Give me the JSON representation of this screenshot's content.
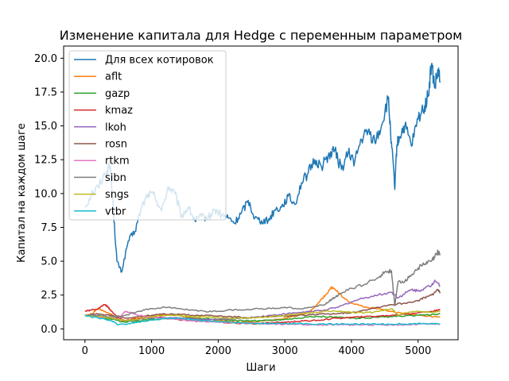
{
  "chart_data": {
    "type": "line",
    "title": "Изменение капитала для Hedge с переменным параметром",
    "xlabel": "Шаги",
    "ylabel": "Капитал на каждом шаге",
    "xlim": [
      -320,
      5600
    ],
    "ylim": [
      -0.8,
      20.9
    ],
    "xticks": [
      0,
      1000,
      2000,
      3000,
      4000,
      5000
    ],
    "xtick_labels": [
      "0",
      "1000",
      "2000",
      "3000",
      "4000",
      "5000"
    ],
    "yticks": [
      0.0,
      2.5,
      5.0,
      7.5,
      10.0,
      12.5,
      15.0,
      17.5,
      20.0
    ],
    "ytick_labels": [
      "0.0",
      "2.5",
      "5.0",
      "7.5",
      "10.0",
      "12.5",
      "15.0",
      "17.5",
      "20.0"
    ],
    "grid": false,
    "legend_position": "upper-left",
    "series": [
      {
        "name": "Для всех котировок",
        "color": "#1f77b4",
        "x": [
          0,
          100,
          200,
          300,
          380,
          430,
          480,
          550,
          650,
          750,
          850,
          950,
          1050,
          1150,
          1250,
          1350,
          1450,
          1550,
          1650,
          1750,
          1850,
          1950,
          2050,
          2150,
          2250,
          2350,
          2450,
          2550,
          2650,
          2750,
          2850,
          2950,
          3050,
          3150,
          3250,
          3350,
          3450,
          3550,
          3650,
          3750,
          3850,
          3950,
          4050,
          4150,
          4250,
          4350,
          4450,
          4550,
          4600,
          4650,
          4680,
          4720,
          4800,
          4900,
          5000,
          5100,
          5150,
          5200,
          5250,
          5300,
          5330
        ],
        "y": [
          9.0,
          10.0,
          10.5,
          11.5,
          12.0,
          8.5,
          5.0,
          4.2,
          6.5,
          7.2,
          9.0,
          10.0,
          9.8,
          8.7,
          10.5,
          10.0,
          8.3,
          9.0,
          8.0,
          8.3,
          8.2,
          8.8,
          8.4,
          8.2,
          7.8,
          8.6,
          9.5,
          8.2,
          8.0,
          8.0,
          8.8,
          9.0,
          9.8,
          9.2,
          10.8,
          11.5,
          12.5,
          12.0,
          12.8,
          13.2,
          11.8,
          13.0,
          12.4,
          14.0,
          14.6,
          13.8,
          15.0,
          17.0,
          13.8,
          10.3,
          13.5,
          14.2,
          15.0,
          13.5,
          15.5,
          16.5,
          17.2,
          19.5,
          17.8,
          19.0,
          18.2
        ]
      },
      {
        "name": "aflt",
        "color": "#ff7f0e",
        "x": [
          0,
          100,
          200,
          300,
          450,
          550,
          700,
          900,
          1100,
          1300,
          1500,
          1700,
          1900,
          2100,
          2300,
          2500,
          2700,
          2900,
          3100,
          3300,
          3450,
          3550,
          3650,
          3700,
          3800,
          3900,
          4000,
          4200,
          4400,
          4600,
          4800,
          5000,
          5200,
          5330
        ],
        "y": [
          1.0,
          1.1,
          1.5,
          1.3,
          0.9,
          0.6,
          0.7,
          0.9,
          1.0,
          1.1,
          0.9,
          0.8,
          0.7,
          0.6,
          0.5,
          0.5,
          0.6,
          0.7,
          0.9,
          1.1,
          1.6,
          2.2,
          2.7,
          3.1,
          2.7,
          2.2,
          1.9,
          1.6,
          1.5,
          1.3,
          1.1,
          1.0,
          0.9,
          0.85
        ]
      },
      {
        "name": "gazp",
        "color": "#2ca02c",
        "x": [
          0,
          200,
          400,
          600,
          800,
          1000,
          1200,
          1400,
          1600,
          1800,
          2000,
          2200,
          2400,
          2600,
          2800,
          3000,
          3200,
          3400,
          3600,
          3800,
          4000,
          4200,
          4400,
          4600,
          4800,
          5000,
          5200,
          5330
        ],
        "y": [
          1.0,
          0.9,
          0.7,
          0.5,
          0.6,
          0.7,
          0.75,
          0.8,
          0.8,
          0.75,
          0.7,
          0.65,
          0.6,
          0.6,
          0.65,
          0.7,
          0.8,
          0.9,
          0.9,
          0.85,
          0.8,
          0.8,
          0.85,
          0.9,
          0.95,
          1.0,
          1.05,
          1.1
        ]
      },
      {
        "name": "kmaz",
        "color": "#d62728",
        "x": [
          0,
          100,
          200,
          300,
          350,
          400,
          500,
          600,
          800,
          1000,
          1200,
          1400,
          1600,
          1800,
          2000,
          2200,
          2400,
          2600,
          2800,
          3000,
          3200,
          3400,
          3600,
          3800,
          4000,
          4200,
          4400,
          4600,
          4800,
          5000,
          5200,
          5330
        ],
        "y": [
          1.3,
          1.4,
          1.5,
          1.8,
          1.6,
          1.3,
          0.8,
          0.6,
          0.75,
          0.9,
          0.8,
          0.7,
          0.6,
          0.55,
          0.5,
          0.45,
          0.4,
          0.4,
          0.45,
          0.5,
          0.55,
          0.6,
          0.7,
          0.8,
          0.85,
          0.9,
          0.95,
          1.0,
          1.1,
          1.2,
          1.3,
          1.4
        ]
      },
      {
        "name": "lkoh",
        "color": "#9467bd",
        "x": [
          0,
          200,
          400,
          600,
          800,
          1000,
          1200,
          1400,
          1600,
          1800,
          2000,
          2200,
          2400,
          2600,
          2800,
          3000,
          3200,
          3400,
          3600,
          3800,
          4000,
          4200,
          4400,
          4600,
          4700,
          4800,
          4900,
          5000,
          5100,
          5200,
          5250,
          5330
        ],
        "y": [
          1.0,
          0.9,
          0.8,
          0.6,
          0.7,
          0.8,
          0.85,
          0.8,
          0.75,
          0.7,
          0.7,
          0.75,
          0.8,
          0.9,
          1.0,
          1.1,
          1.2,
          1.3,
          1.4,
          1.6,
          2.0,
          2.3,
          2.5,
          2.7,
          2.3,
          2.6,
          2.9,
          2.8,
          3.0,
          3.2,
          3.6,
          3.2
        ]
      },
      {
        "name": "rosn",
        "color": "#8c564b",
        "x": [
          0,
          200,
          400,
          600,
          800,
          1000,
          1200,
          1400,
          1600,
          1800,
          2000,
          2200,
          2400,
          2600,
          2800,
          3000,
          3200,
          3400,
          3600,
          3800,
          4000,
          4200,
          4400,
          4600,
          4800,
          5000,
          5100,
          5200,
          5300,
          5330
        ],
        "y": [
          1.0,
          1.1,
          1.0,
          0.8,
          0.9,
          1.0,
          1.1,
          1.1,
          1.0,
          1.0,
          0.95,
          0.9,
          0.85,
          0.85,
          0.9,
          0.95,
          1.0,
          1.05,
          1.1,
          1.15,
          1.2,
          1.4,
          1.6,
          1.8,
          1.9,
          2.1,
          2.3,
          2.5,
          2.9,
          2.7
        ]
      },
      {
        "name": "rtkm",
        "color": "#e377c2",
        "x": [
          0,
          200,
          400,
          500,
          600,
          700,
          800,
          1000,
          1200,
          1400,
          1600,
          1800,
          2000,
          2200,
          2400,
          2600,
          2800,
          3000,
          3200,
          3400,
          3600,
          3800,
          4000,
          4200,
          4400,
          4600,
          4800,
          5000,
          5200,
          5330
        ],
        "y": [
          1.0,
          0.9,
          0.8,
          0.7,
          1.3,
          1.2,
          1.0,
          0.9,
          0.8,
          0.7,
          0.6,
          0.55,
          0.5,
          0.45,
          0.4,
          0.4,
          0.35,
          0.35,
          0.35,
          0.3,
          0.3,
          0.3,
          0.3,
          0.3,
          0.3,
          0.3,
          0.3,
          0.35,
          0.35,
          0.35
        ]
      },
      {
        "name": "sibn",
        "color": "#7f7f7f",
        "x": [
          0,
          200,
          400,
          600,
          800,
          1000,
          1200,
          1400,
          1600,
          1800,
          2000,
          2200,
          2400,
          2600,
          2800,
          3000,
          3200,
          3400,
          3600,
          3700,
          3800,
          4000,
          4200,
          4400,
          4500,
          4600,
          4650,
          4700,
          4800,
          4900,
          5000,
          5100,
          5200,
          5250,
          5300,
          5330
        ],
        "y": [
          1.0,
          1.0,
          0.9,
          1.0,
          1.3,
          1.5,
          1.6,
          1.5,
          1.4,
          1.3,
          1.3,
          1.4,
          1.4,
          1.5,
          1.5,
          1.6,
          1.5,
          1.6,
          1.8,
          2.2,
          2.5,
          3.0,
          3.3,
          3.8,
          4.2,
          4.3,
          1.7,
          3.5,
          3.5,
          4.0,
          4.5,
          4.8,
          5.0,
          5.3,
          5.7,
          5.5
        ]
      },
      {
        "name": "sngs",
        "color": "#bcbd22",
        "x": [
          0,
          200,
          400,
          600,
          800,
          1000,
          1200,
          1400,
          1600,
          1800,
          2000,
          2200,
          2400,
          2600,
          2800,
          3000,
          3200,
          3400,
          3600,
          3800,
          4000,
          4200,
          4400,
          4600,
          4700,
          4800,
          5000,
          5200,
          5330
        ],
        "y": [
          1.0,
          0.9,
          0.8,
          0.6,
          0.7,
          0.9,
          1.0,
          1.0,
          0.9,
          0.9,
          0.85,
          0.8,
          0.8,
          0.85,
          0.9,
          1.0,
          1.1,
          1.2,
          1.3,
          1.3,
          1.2,
          1.2,
          1.3,
          1.5,
          1.0,
          1.2,
          1.3,
          1.2,
          1.3
        ]
      },
      {
        "name": "vtbr",
        "color": "#17becf",
        "x": [
          0,
          200,
          400,
          500,
          600,
          800,
          1000,
          1200,
          1400,
          1600,
          1800,
          2000,
          2200,
          2400,
          2600,
          2800,
          3000,
          3200,
          3400,
          3600,
          3800,
          4000,
          4200,
          4400,
          4600,
          4800,
          5000,
          5200,
          5330
        ],
        "y": [
          1.0,
          0.8,
          0.6,
          0.3,
          0.35,
          0.5,
          0.65,
          0.75,
          0.8,
          0.7,
          0.6,
          0.55,
          0.5,
          0.45,
          0.4,
          0.4,
          0.4,
          0.4,
          0.35,
          0.35,
          0.35,
          0.35,
          0.35,
          0.35,
          0.35,
          0.35,
          0.4,
          0.4,
          0.35
        ]
      }
    ]
  }
}
